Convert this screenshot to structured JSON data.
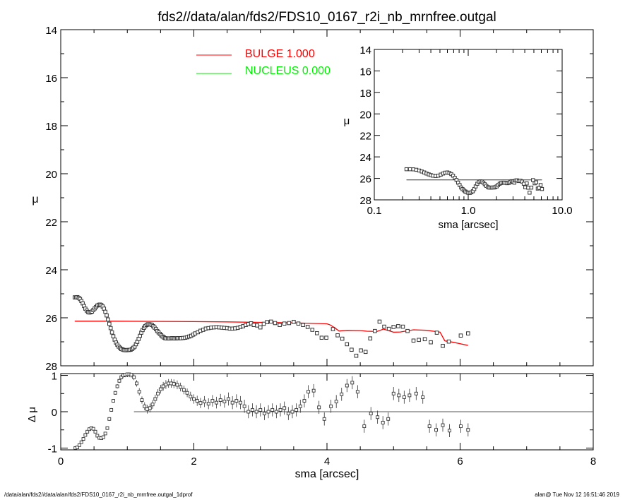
{
  "title": "fds2//data/alan/fds2/FDS10_0167_r2i_nb_mrnfree.outgal",
  "footer_left": "/data/alan/fds2//data/alan/fds2/FDS10_0167_r2i_nb_mrnfree.outgal_1dprof",
  "footer_right": "alan@  Tue Nov 12 16:51:46 2019",
  "colors": {
    "bulge": "#ff0000",
    "nucleus": "#00ee00",
    "data": "#000000"
  },
  "chart_data": [
    {
      "id": "main",
      "type": "scatter",
      "xlabel": "sma [arcsec]",
      "ylabel": "μ",
      "xlim": [
        0,
        8
      ],
      "ylim": [
        28,
        14
      ],
      "yticks": [
        "14",
        "16",
        "18",
        "20",
        "22",
        "24",
        "26",
        "28"
      ],
      "legend": {
        "placement": "top-left",
        "entries": [
          {
            "label": "BULGE  1.000",
            "color": "#ff0000"
          },
          {
            "label": "NUCLEUS  0.000",
            "color": "#00ee00"
          }
        ]
      },
      "series": [
        {
          "kind": "points",
          "x": [
            0.21,
            0.23,
            0.25,
            0.27,
            0.29,
            0.31,
            0.33,
            0.35,
            0.37,
            0.39,
            0.41,
            0.43,
            0.45,
            0.47,
            0.49,
            0.51,
            0.53,
            0.55,
            0.57,
            0.59,
            0.61,
            0.63,
            0.65,
            0.67,
            0.69,
            0.71,
            0.73,
            0.75,
            0.77,
            0.79,
            0.81,
            0.83,
            0.85,
            0.87,
            0.89,
            0.91,
            0.93,
            0.95,
            0.97,
            0.99,
            1.01,
            1.03,
            1.05,
            1.07,
            1.09,
            1.11,
            1.13,
            1.15,
            1.17,
            1.19,
            1.21,
            1.23,
            1.25,
            1.27,
            1.29,
            1.31,
            1.33,
            1.35,
            1.37,
            1.39,
            1.41,
            1.43,
            1.45,
            1.47,
            1.49,
            1.51,
            1.53,
            1.55,
            1.57,
            1.59,
            1.61,
            1.63,
            1.65,
            1.67,
            1.69,
            1.71,
            1.73,
            1.75,
            1.77,
            1.79,
            1.81,
            1.84,
            1.87,
            1.9,
            1.93,
            1.96,
            1.99,
            2.02,
            2.06,
            2.1,
            2.14,
            2.18,
            2.22,
            2.26,
            2.3,
            2.34,
            2.38,
            2.42,
            2.46,
            2.5,
            2.54,
            2.58,
            2.62,
            2.66,
            2.7,
            2.74,
            2.78,
            2.82,
            2.86,
            2.9,
            2.95,
            3.0,
            3.05,
            3.1,
            3.16,
            3.22,
            3.29,
            3.36,
            3.43,
            3.5,
            3.57,
            3.64,
            3.71,
            3.78,
            3.85,
            3.92,
            3.99,
            4.09,
            4.16,
            4.23,
            4.3,
            4.37,
            4.44,
            4.51,
            4.58,
            4.65,
            4.72,
            4.79,
            4.86,
            4.93,
            5.0,
            5.07,
            5.14,
            5.21,
            5.3,
            5.38,
            5.47,
            5.56,
            5.65,
            5.74,
            5.83,
            6.01,
            6.12
          ],
          "y": [
            25.15,
            25.15,
            25.14,
            25.17,
            25.22,
            25.3,
            25.4,
            25.51,
            25.62,
            25.7,
            25.76,
            25.78,
            25.77,
            25.74,
            25.68,
            25.61,
            25.55,
            25.49,
            25.46,
            25.45,
            25.47,
            25.53,
            25.62,
            25.75,
            25.9,
            26.07,
            26.25,
            26.43,
            26.61,
            26.77,
            26.91,
            27.03,
            27.12,
            27.2,
            27.25,
            27.3,
            27.32,
            27.34,
            27.35,
            27.35,
            27.34,
            27.34,
            27.33,
            27.3,
            27.25,
            27.2,
            27.1,
            27.0,
            26.88,
            26.75,
            26.62,
            26.51,
            26.42,
            26.35,
            26.3,
            26.27,
            26.27,
            26.28,
            26.3,
            26.35,
            26.41,
            26.47,
            26.55,
            26.61,
            26.67,
            26.73,
            26.78,
            26.82,
            26.85,
            26.86,
            26.86,
            26.86,
            26.86,
            26.85,
            26.85,
            26.86,
            26.86,
            26.85,
            26.85,
            26.85,
            26.85,
            26.84,
            26.83,
            26.81,
            26.78,
            26.75,
            26.7,
            26.65,
            26.6,
            26.54,
            26.5,
            26.45,
            26.43,
            26.41,
            26.4,
            26.39,
            26.4,
            26.41,
            26.42,
            26.43,
            26.45,
            26.45,
            26.44,
            26.42,
            26.38,
            26.35,
            26.3,
            26.26,
            26.23,
            26.3,
            26.32,
            26.4,
            26.25,
            26.18,
            26.16,
            26.22,
            26.3,
            26.24,
            26.22,
            26.17,
            26.24,
            26.3,
            26.38,
            26.5,
            26.64,
            26.83,
            26.83,
            26.47,
            26.73,
            26.87,
            27.1,
            27.33,
            27.58,
            27.36,
            27.42,
            26.86,
            26.55,
            26.16,
            26.37,
            26.46,
            26.38,
            26.35,
            26.37,
            26.55,
            26.95,
            26.92,
            26.89,
            27.02,
            26.62,
            27.17,
            26.99,
            26.74,
            26.65
          ]
        },
        {
          "name": "BULGE  1.000",
          "kind": "line",
          "color": "#ff0000",
          "x": [
            0.21,
            0.8,
            1.5,
            2.0,
            2.5,
            3.0,
            3.5,
            4.0,
            4.05,
            4.12,
            4.18,
            4.3,
            4.5,
            4.6,
            4.75,
            4.85,
            5.0,
            5.1,
            5.3,
            5.5,
            5.6,
            5.7,
            5.77,
            5.9,
            6.12
          ],
          "y": [
            26.14,
            26.14,
            26.15,
            26.16,
            26.17,
            26.19,
            26.21,
            26.25,
            26.3,
            26.42,
            26.55,
            26.52,
            26.53,
            26.56,
            26.57,
            26.47,
            26.6,
            26.59,
            26.5,
            26.52,
            26.56,
            26.6,
            26.96,
            27.02,
            27.15
          ]
        }
      ]
    },
    {
      "id": "residual",
      "type": "scatter",
      "xlabel": "sma [arcsec]",
      "ylabel": "Δ μ",
      "xlim": [
        0,
        8
      ],
      "ylim": [
        -1.05,
        1.05
      ],
      "xticks": [
        "0",
        "2",
        "4",
        "6",
        "8"
      ],
      "yticks": [
        "1",
        "0",
        "-1"
      ],
      "series": [
        {
          "kind": "points_with_errorbars",
          "x": [
            0.22,
            0.25,
            0.28,
            0.31,
            0.34,
            0.37,
            0.4,
            0.43,
            0.46,
            0.49,
            0.52,
            0.55,
            0.58,
            0.61,
            0.64,
            0.67,
            0.7,
            0.73,
            0.76,
            0.79,
            0.82,
            0.85,
            0.88,
            0.91,
            0.94,
            0.97,
            1.0,
            1.03,
            1.06,
            1.1,
            1.14,
            1.18,
            1.22,
            1.26,
            1.3,
            1.34,
            1.38,
            1.42,
            1.46,
            1.5,
            1.54,
            1.58,
            1.62,
            1.66,
            1.7,
            1.75,
            1.8,
            1.85,
            1.9,
            1.95,
            2.0,
            2.05,
            2.1,
            2.16,
            2.22,
            2.28,
            2.34,
            2.4,
            2.46,
            2.52,
            2.58,
            2.64,
            2.7,
            2.76,
            2.82,
            2.88,
            2.94,
            3.0,
            3.06,
            3.12,
            3.18,
            3.24,
            3.3,
            3.36,
            3.42,
            3.48,
            3.54,
            3.6,
            3.66,
            3.72,
            3.8,
            3.88,
            3.96,
            4.06,
            4.14,
            4.22,
            4.3,
            4.38,
            4.46,
            4.56,
            4.66,
            4.76,
            4.84,
            4.92,
            5.0,
            5.08,
            5.16,
            5.24,
            5.34,
            5.44,
            5.54,
            5.64,
            5.74,
            5.84,
            6.01,
            6.12
          ],
          "y": [
            -1.0,
            -0.98,
            -0.92,
            -0.84,
            -0.75,
            -0.64,
            -0.55,
            -0.48,
            -0.45,
            -0.47,
            -0.55,
            -0.66,
            -0.72,
            -0.73,
            -0.7,
            -0.6,
            -0.45,
            -0.2,
            0.05,
            0.3,
            0.52,
            0.7,
            0.85,
            0.95,
            1.0,
            1.02,
            1.03,
            1.03,
            1.02,
            0.95,
            0.78,
            0.55,
            0.32,
            0.15,
            0.07,
            0.1,
            0.2,
            0.35,
            0.5,
            0.62,
            0.7,
            0.75,
            0.78,
            0.78,
            0.77,
            0.74,
            0.68,
            0.6,
            0.52,
            0.42,
            0.35,
            0.3,
            0.24,
            0.28,
            0.22,
            0.3,
            0.25,
            0.32,
            0.28,
            0.35,
            0.25,
            0.3,
            0.25,
            0.15,
            0.0,
            0.05,
            0.0,
            0.05,
            -0.05,
            0.0,
            0.05,
            0.0,
            0.05,
            0.1,
            -0.05,
            0.0,
            0.05,
            0.15,
            0.3,
            0.55,
            0.58,
            0.12,
            -0.2,
            0.15,
            0.28,
            0.48,
            0.72,
            0.8,
            0.55,
            -0.4,
            -0.05,
            -0.15,
            -0.3,
            -0.2,
            0.5,
            0.45,
            0.4,
            0.45,
            0.5,
            0.4,
            -0.4,
            -0.5,
            -0.37,
            -0.52,
            -0.4,
            -0.5
          ],
          "err": [
            0.04,
            0.04,
            0.04,
            0.04,
            0.04,
            0.04,
            0.04,
            0.04,
            0.04,
            0.04,
            0.04,
            0.04,
            0.04,
            0.04,
            0.04,
            0.04,
            0.05,
            0.05,
            0.05,
            0.05,
            0.05,
            0.06,
            0.06,
            0.06,
            0.06,
            0.07,
            0.07,
            0.08,
            0.08,
            0.08,
            0.09,
            0.1,
            0.1,
            0.11,
            0.12,
            0.12,
            0.12,
            0.12,
            0.12,
            0.12,
            0.12,
            0.12,
            0.12,
            0.12,
            0.12,
            0.12,
            0.12,
            0.12,
            0.12,
            0.13,
            0.13,
            0.14,
            0.14,
            0.15,
            0.15,
            0.16,
            0.16,
            0.17,
            0.17,
            0.18,
            0.18,
            0.18,
            0.18,
            0.18,
            0.18,
            0.18,
            0.18,
            0.18,
            0.18,
            0.18,
            0.18,
            0.18,
            0.18,
            0.18,
            0.18,
            0.18,
            0.18,
            0.18,
            0.18,
            0.18,
            0.18,
            0.18,
            0.18,
            0.18,
            0.18,
            0.18,
            0.18,
            0.18,
            0.18,
            0.18,
            0.18,
            0.18,
            0.18,
            0.18,
            0.18,
            0.18,
            0.18,
            0.18,
            0.18,
            0.18,
            0.18,
            0.18,
            0.18,
            0.18,
            0.18,
            0.18
          ]
        },
        {
          "kind": "reference_line",
          "x": [
            1.1,
            8.0
          ],
          "y": [
            0,
            0
          ]
        }
      ]
    },
    {
      "id": "inset",
      "type": "scatter",
      "xlabel": "sma [arcsec]",
      "ylabel": "μ",
      "xscale": "log",
      "xlim": [
        0.1,
        10.0
      ],
      "ylim": [
        28,
        14
      ],
      "xticks": [
        "0.1",
        "1.0",
        "10.0"
      ],
      "yticks": [
        "14",
        "16",
        "18",
        "20",
        "22",
        "24",
        "26",
        "28"
      ],
      "series": [
        {
          "kind": "points",
          "x": [
            0.22,
            0.24,
            0.26,
            0.28,
            0.3,
            0.32,
            0.34,
            0.36,
            0.38,
            0.4,
            0.42,
            0.45,
            0.48,
            0.51,
            0.54,
            0.57,
            0.6,
            0.63,
            0.66,
            0.69,
            0.72,
            0.75,
            0.78,
            0.81,
            0.84,
            0.87,
            0.9,
            0.93,
            0.96,
            1.0,
            1.04,
            1.08,
            1.12,
            1.16,
            1.2,
            1.25,
            1.3,
            1.35,
            1.4,
            1.45,
            1.5,
            1.56,
            1.62,
            1.68,
            1.74,
            1.8,
            1.87,
            1.94,
            2.01,
            2.08,
            2.16,
            2.24,
            2.32,
            2.4,
            2.5,
            2.6,
            2.7,
            2.8,
            2.9,
            3.0,
            3.1,
            3.2,
            3.3,
            3.45,
            3.6,
            3.75,
            3.9,
            4.05,
            4.2,
            4.35,
            4.5,
            4.7,
            4.9,
            5.1,
            5.3,
            5.5,
            5.7,
            5.9,
            6.1
          ],
          "y": [
            25.15,
            25.15,
            25.16,
            25.2,
            25.27,
            25.36,
            25.45,
            25.55,
            25.63,
            25.7,
            25.75,
            25.78,
            25.75,
            25.65,
            25.55,
            25.47,
            25.45,
            25.5,
            25.6,
            25.75,
            25.95,
            26.15,
            26.4,
            26.62,
            26.85,
            27.0,
            27.12,
            27.22,
            27.3,
            27.34,
            27.35,
            27.3,
            27.2,
            27.0,
            26.75,
            26.5,
            26.32,
            26.28,
            26.3,
            26.4,
            26.55,
            26.7,
            26.82,
            26.86,
            26.86,
            26.85,
            26.85,
            26.82,
            26.75,
            26.62,
            26.5,
            26.43,
            26.4,
            26.4,
            26.42,
            26.45,
            26.42,
            26.35,
            26.26,
            26.3,
            26.4,
            26.2,
            26.18,
            26.25,
            26.22,
            26.3,
            26.5,
            26.83,
            26.47,
            26.87,
            27.33,
            26.86,
            26.16,
            26.46,
            26.37,
            26.95,
            26.89,
            26.62,
            26.99
          ]
        },
        {
          "kind": "line",
          "x": [
            0.22,
            6.1
          ],
          "y": [
            26.14,
            26.14
          ]
        }
      ]
    }
  ]
}
